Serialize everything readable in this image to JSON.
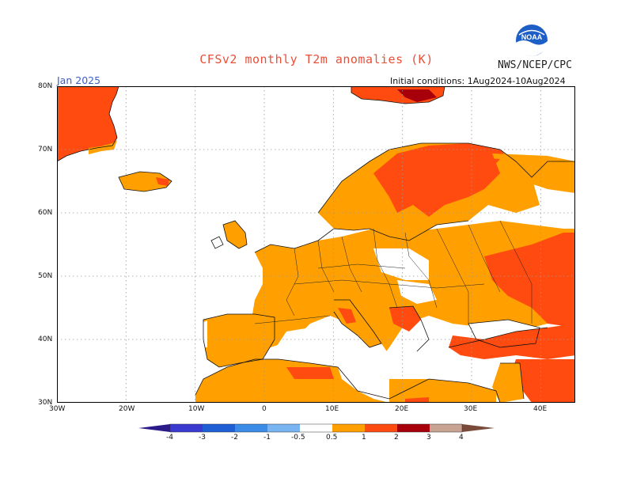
{
  "title": "CFSv2 monthly T2m anomalies (K)",
  "logo_text": "NOAA",
  "organization": "NWS/NCEP/CPC",
  "forecast_month": "Jan 2025",
  "initial_conditions": "Initial conditions: 1Aug2024-10Aug2024",
  "lat_labels": [
    "80N",
    "70N",
    "60N",
    "50N",
    "40N",
    "30N"
  ],
  "lon_labels": [
    "30W",
    "20W",
    "10W",
    "0",
    "10E",
    "20E",
    "30E",
    "40E"
  ],
  "colorbar": {
    "labels": [
      "-4",
      "-3",
      "-2",
      "-1",
      "-0.5",
      "0.5",
      "1",
      "2",
      "3",
      "4"
    ],
    "colors": [
      "#2a1a8a",
      "#3a3ad0",
      "#1f5fd6",
      "#3b8be8",
      "#78b4f2",
      "#ffffff",
      "#ff9f00",
      "#ff4b10",
      "#a8000b",
      "#c8a292",
      "#7a4a3a"
    ]
  },
  "map_data": {
    "type": "gridded anomaly map",
    "lon_range": [
      -30,
      45
    ],
    "lat_range": [
      30,
      80
    ],
    "dominant_categories": [
      "0.5 to 1",
      "1 to 2"
    ],
    "strong_regions": [
      {
        "name": "Greenland",
        "category": "1 to 2"
      },
      {
        "name": "Northern Fennoscandia",
        "category": "1 to 2"
      },
      {
        "name": "Western Russia",
        "category": "1 to 2"
      },
      {
        "name": "Turkey and Middle East",
        "category": "1 to 2"
      },
      {
        "name": "Svalbard",
        "category": "2 to 3"
      }
    ]
  }
}
